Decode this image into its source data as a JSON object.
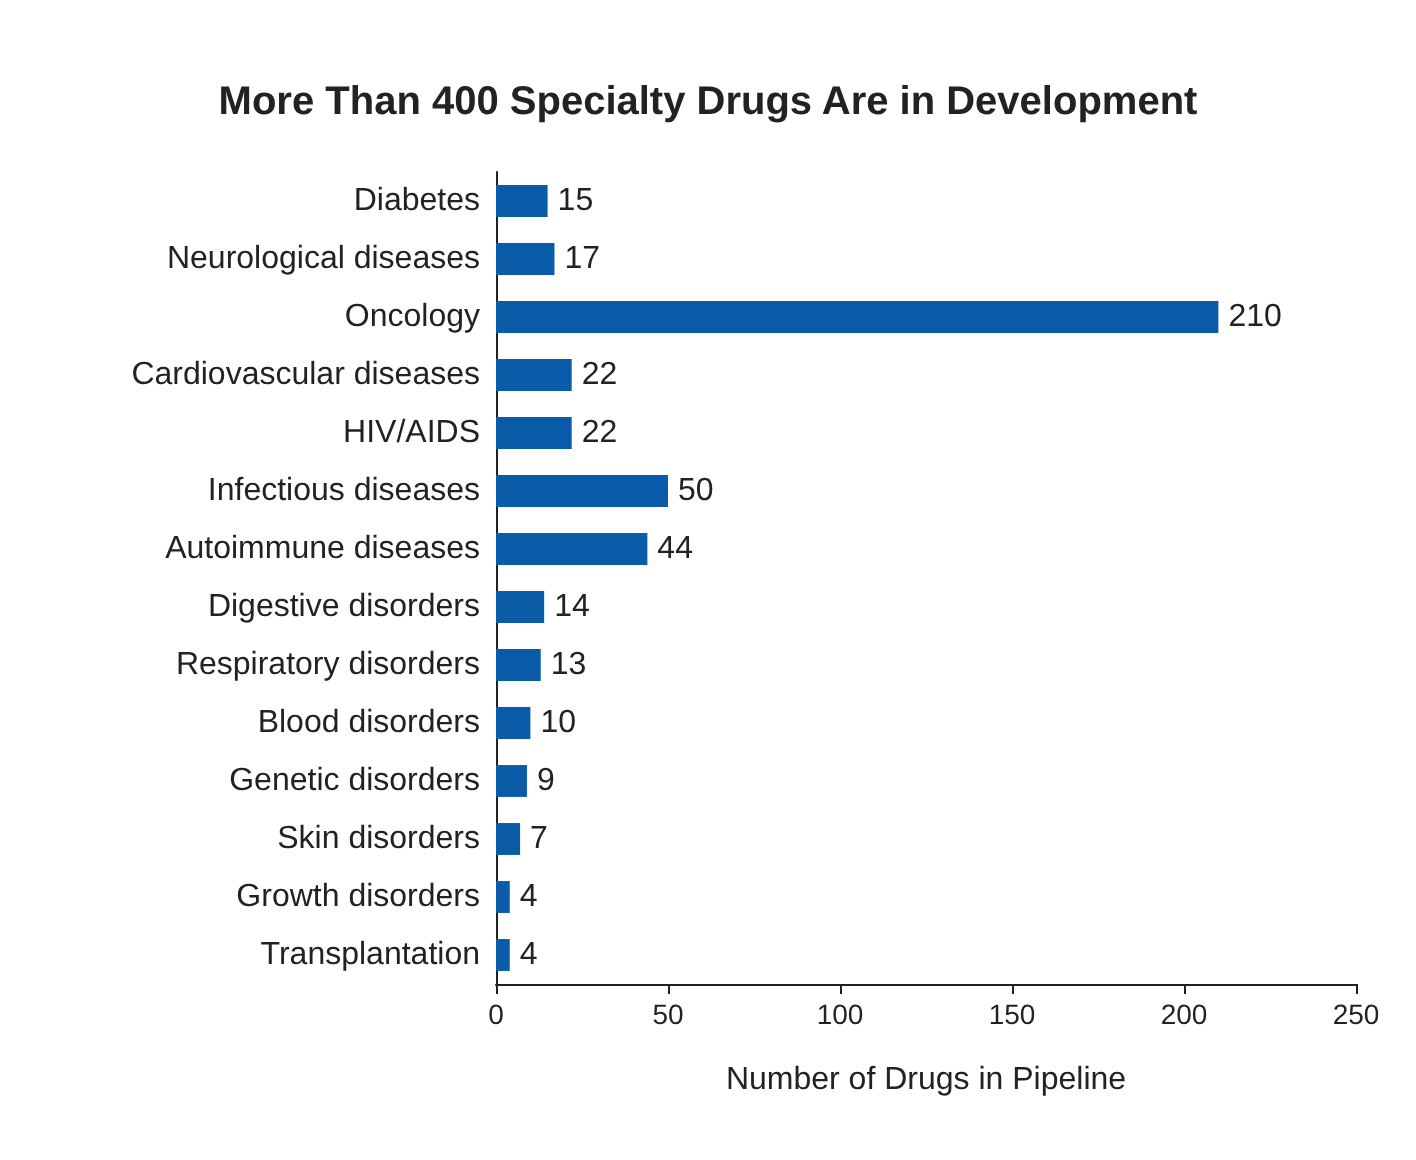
{
  "chart_data": {
    "type": "bar",
    "orientation": "horizontal",
    "title": "More Than 400 Specialty Drugs Are in Development",
    "xlabel": "Number of Drugs in Pipeline",
    "categories": [
      "Diabetes",
      "Neurological diseases",
      "Oncology",
      "Cardiovascular diseases",
      "HIV/AIDS",
      "Infectious diseases",
      "Autoimmune diseases",
      "Digestive disorders",
      "Respiratory disorders",
      "Blood disorders",
      "Genetic disorders",
      "Skin disorders",
      "Growth disorders",
      "Transplantation"
    ],
    "values": [
      15,
      17,
      210,
      22,
      22,
      50,
      44,
      14,
      13,
      10,
      9,
      7,
      4,
      4
    ],
    "color": "#0b5ca8",
    "data_labels": true,
    "xlim": [
      0,
      250
    ],
    "xticks": [
      0,
      50,
      100,
      150,
      200,
      250
    ],
    "grid": false
  }
}
